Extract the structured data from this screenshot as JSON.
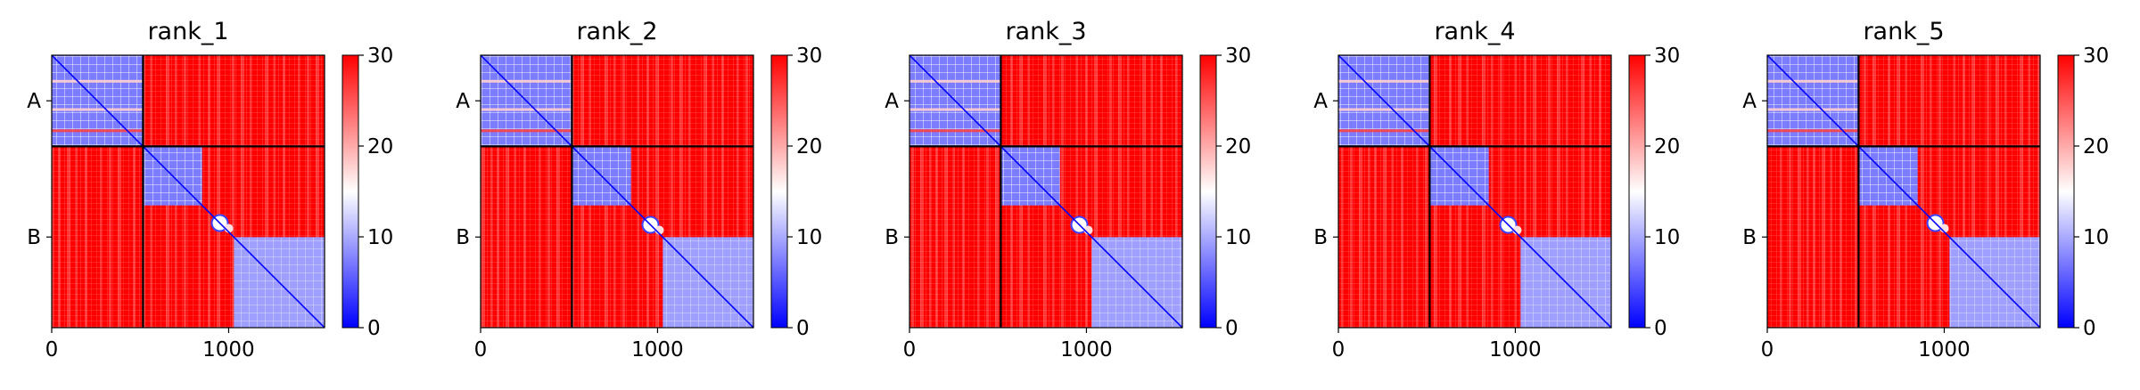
{
  "chart_data": [
    {
      "type": "heatmap",
      "title": "rank_1",
      "x_ticks": [
        0,
        1000
      ],
      "y_tick_labels": [
        {
          "label": "A",
          "center": 258
        },
        {
          "label": "B",
          "center": 1029
        }
      ],
      "chain_boundaries": [
        516
      ],
      "matrix_size": 1542,
      "colorbar": {
        "min": 0,
        "max": 30,
        "ticks": [
          0,
          10,
          20,
          30
        ],
        "colors": [
          "#0000ff",
          "#ffffff",
          "#ff0000"
        ]
      },
      "low_blocks": [
        [
          0,
          516
        ],
        [
          516,
          850
        ],
        [
          1030,
          1542
        ]
      ],
      "loop_center": 950
    },
    {
      "type": "heatmap",
      "title": "rank_2",
      "x_ticks": [
        0,
        1000
      ],
      "y_tick_labels": [
        {
          "label": "A",
          "center": 258
        },
        {
          "label": "B",
          "center": 1029
        }
      ],
      "chain_boundaries": [
        516
      ],
      "matrix_size": 1542,
      "colorbar": {
        "min": 0,
        "max": 30,
        "ticks": [
          0,
          10,
          20,
          30
        ],
        "colors": [
          "#0000ff",
          "#ffffff",
          "#ff0000"
        ]
      },
      "low_blocks": [
        [
          0,
          516
        ],
        [
          516,
          850
        ],
        [
          1030,
          1542
        ]
      ],
      "loop_center": 960
    },
    {
      "type": "heatmap",
      "title": "rank_3",
      "x_ticks": [
        0,
        1000
      ],
      "y_tick_labels": [
        {
          "label": "A",
          "center": 258
        },
        {
          "label": "B",
          "center": 1029
        }
      ],
      "chain_boundaries": [
        516
      ],
      "matrix_size": 1542,
      "colorbar": {
        "min": 0,
        "max": 30,
        "ticks": [
          0,
          10,
          20,
          30
        ],
        "colors": [
          "#0000ff",
          "#ffffff",
          "#ff0000"
        ]
      },
      "low_blocks": [
        [
          0,
          516
        ],
        [
          516,
          850
        ],
        [
          1030,
          1542
        ]
      ],
      "loop_center": 960
    },
    {
      "type": "heatmap",
      "title": "rank_4",
      "x_ticks": [
        0,
        1000
      ],
      "y_tick_labels": [
        {
          "label": "A",
          "center": 258
        },
        {
          "label": "B",
          "center": 1029
        }
      ],
      "chain_boundaries": [
        516
      ],
      "matrix_size": 1542,
      "colorbar": {
        "min": 0,
        "max": 30,
        "ticks": [
          0,
          10,
          20,
          30
        ],
        "colors": [
          "#0000ff",
          "#ffffff",
          "#ff0000"
        ]
      },
      "low_blocks": [
        [
          0,
          516
        ],
        [
          516,
          850
        ],
        [
          1030,
          1542
        ]
      ],
      "loop_center": 960
    },
    {
      "type": "heatmap",
      "title": "rank_5",
      "x_ticks": [
        0,
        1000
      ],
      "y_tick_labels": [
        {
          "label": "A",
          "center": 258
        },
        {
          "label": "B",
          "center": 1029
        }
      ],
      "chain_boundaries": [
        516
      ],
      "matrix_size": 1542,
      "colorbar": {
        "min": 0,
        "max": 30,
        "ticks": [
          0,
          10,
          20,
          30
        ],
        "colors": [
          "#0000ff",
          "#ffffff",
          "#ff0000"
        ]
      },
      "low_blocks": [
        [
          0,
          516
        ],
        [
          516,
          850
        ],
        [
          1030,
          1542
        ]
      ],
      "loop_center": 950
    }
  ]
}
